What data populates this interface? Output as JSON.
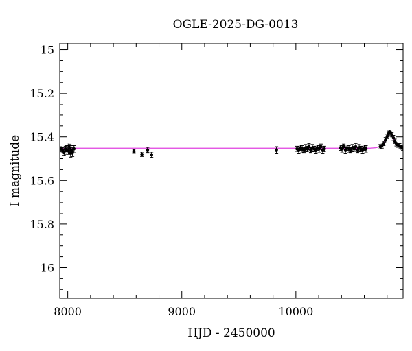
{
  "chart_data": {
    "type": "scatter",
    "title": "OGLE-2025-DG-0013",
    "xlabel": "HJD - 2450000",
    "ylabel": "I magnitude",
    "xlim": [
      7930,
      10940
    ],
    "ylim": [
      16.14,
      14.97
    ],
    "y_inverted": true,
    "x_major_ticks": [
      8000,
      9000,
      10000
    ],
    "x_tick_labels": [
      "8000",
      "9000",
      "10000"
    ],
    "y_major_ticks": [
      15,
      15.2,
      15.4,
      15.6,
      15.8,
      16
    ],
    "y_tick_labels": [
      "15",
      "15.2",
      "15.4",
      "15.6",
      "15.8",
      "16"
    ],
    "grid": false,
    "colors": {
      "points": "#000000",
      "model": "#e040e0",
      "axes": "#000000"
    },
    "series": [
      {
        "kind": "points_with_errorbars",
        "points": [
          [
            7940,
            15.455,
            0.01
          ],
          [
            7955,
            15.46,
            0.01
          ],
          [
            7968,
            15.47,
            0.015
          ],
          [
            7980,
            15.455,
            0.012
          ],
          [
            7992,
            15.46,
            0.02
          ],
          [
            8005,
            15.465,
            0.015
          ],
          [
            8018,
            15.45,
            0.015
          ],
          [
            8030,
            15.46,
            0.02
          ],
          [
            8042,
            15.47,
            0.02
          ],
          [
            8055,
            15.455,
            0.015
          ],
          [
            8010,
            15.44,
            0.012
          ],
          [
            8025,
            15.475,
            0.018
          ],
          [
            8580,
            15.465,
            0.008
          ],
          [
            8650,
            15.48,
            0.01
          ],
          [
            8700,
            15.46,
            0.012
          ],
          [
            8735,
            15.482,
            0.012
          ],
          [
            9830,
            15.46,
            0.015
          ],
          [
            10010,
            15.455,
            0.012
          ],
          [
            10025,
            15.46,
            0.015
          ],
          [
            10040,
            15.45,
            0.012
          ],
          [
            10055,
            15.455,
            0.015
          ],
          [
            10070,
            15.46,
            0.012
          ],
          [
            10085,
            15.45,
            0.015
          ],
          [
            10100,
            15.455,
            0.012
          ],
          [
            10115,
            15.445,
            0.015
          ],
          [
            10130,
            15.46,
            0.012
          ],
          [
            10145,
            15.45,
            0.015
          ],
          [
            10160,
            15.455,
            0.012
          ],
          [
            10175,
            15.46,
            0.015
          ],
          [
            10190,
            15.45,
            0.012
          ],
          [
            10205,
            15.455,
            0.015
          ],
          [
            10220,
            15.445,
            0.012
          ],
          [
            10235,
            15.46,
            0.015
          ],
          [
            10250,
            15.455,
            0.012
          ],
          [
            10390,
            15.45,
            0.012
          ],
          [
            10405,
            15.455,
            0.015
          ],
          [
            10420,
            15.445,
            0.012
          ],
          [
            10435,
            15.46,
            0.015
          ],
          [
            10450,
            15.45,
            0.012
          ],
          [
            10465,
            15.455,
            0.015
          ],
          [
            10480,
            15.46,
            0.012
          ],
          [
            10495,
            15.45,
            0.015
          ],
          [
            10510,
            15.455,
            0.012
          ],
          [
            10525,
            15.445,
            0.015
          ],
          [
            10540,
            15.46,
            0.012
          ],
          [
            10555,
            15.45,
            0.015
          ],
          [
            10570,
            15.455,
            0.012
          ],
          [
            10585,
            15.46,
            0.015
          ],
          [
            10600,
            15.45,
            0.012
          ],
          [
            10615,
            15.455,
            0.015
          ],
          [
            10740,
            15.445,
            0.01
          ],
          [
            10755,
            15.44,
            0.012
          ],
          [
            10770,
            15.43,
            0.01
          ],
          [
            10785,
            15.415,
            0.012
          ],
          [
            10800,
            15.398,
            0.01
          ],
          [
            10812,
            15.385,
            0.012
          ],
          [
            10822,
            15.378,
            0.01
          ],
          [
            10832,
            15.38,
            0.012
          ],
          [
            10842,
            15.39,
            0.01
          ],
          [
            10855,
            15.405,
            0.012
          ],
          [
            10868,
            15.42,
            0.01
          ],
          [
            10880,
            15.43,
            0.012
          ],
          [
            10895,
            15.438,
            0.01
          ],
          [
            10910,
            15.443,
            0.012
          ],
          [
            10925,
            15.447,
            0.01
          ],
          [
            10938,
            15.45,
            0.012
          ]
        ]
      },
      {
        "kind": "model_line",
        "baseline": 15.452,
        "points": [
          [
            7930,
            15.452
          ],
          [
            10650,
            15.452
          ],
          [
            10700,
            15.45
          ],
          [
            10740,
            15.445
          ],
          [
            10770,
            15.43
          ],
          [
            10790,
            15.41
          ],
          [
            10805,
            15.393
          ],
          [
            10822,
            15.38
          ],
          [
            10838,
            15.388
          ],
          [
            10855,
            15.405
          ],
          [
            10875,
            15.425
          ],
          [
            10895,
            15.438
          ],
          [
            10920,
            15.446
          ],
          [
            10940,
            15.45
          ]
        ]
      }
    ]
  }
}
